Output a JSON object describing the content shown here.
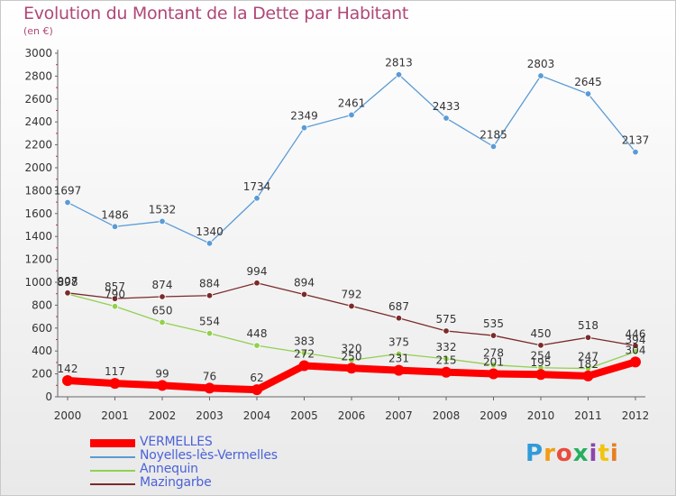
{
  "title": "Evolution du Montant de la Dette par Habitant",
  "subtitle": "(en €)",
  "logo": "Proxiti",
  "chart_data": {
    "type": "line",
    "x": [
      "2000",
      "2001",
      "2002",
      "2003",
      "2004",
      "2005",
      "2006",
      "2007",
      "2008",
      "2009",
      "2010",
      "2011",
      "2012"
    ],
    "ylim": [
      0,
      3000
    ],
    "yticks": [
      0,
      200,
      400,
      600,
      800,
      1000,
      1200,
      1400,
      1600,
      1800,
      2000,
      2200,
      2400,
      2600,
      2800,
      3000
    ],
    "grid": false,
    "legend_position": "bottom-left",
    "series": [
      {
        "name": "VERMELLES",
        "color": "#ff0000",
        "values": [
          142,
          117,
          99,
          76,
          62,
          272,
          250,
          231,
          215,
          201,
          195,
          182,
          304
        ],
        "labels": [
          "142",
          "117",
          "99",
          "76",
          "62",
          "272",
          "250",
          "231",
          "215",
          "201",
          "195",
          "182",
          "304"
        ]
      },
      {
        "name": "Noyelles-lès-Vermelles",
        "color": "#5b9bd5",
        "values": [
          1697,
          1486,
          1532,
          1340,
          1734,
          2349,
          2461,
          2813,
          2433,
          2185,
          2803,
          2645,
          2137
        ],
        "labels": [
          "1697",
          "1486",
          "1532",
          "1340",
          "1734",
          "2349",
          "2461",
          "2813",
          "2433",
          "2185",
          "2803",
          "2645",
          "2137"
        ]
      },
      {
        "name": "Annequin",
        "color": "#92d050",
        "values": [
          898,
          790,
          650,
          554,
          448,
          383,
          320,
          375,
          332,
          278,
          254,
          247,
          394
        ],
        "labels": [
          "898",
          "790",
          "650",
          "554",
          "448",
          "383",
          "320",
          "375",
          "332",
          "278",
          "254",
          "247",
          "394"
        ]
      },
      {
        "name": "Mazingarbe",
        "color": "#7b2a2a",
        "values": [
          907,
          857,
          874,
          884,
          994,
          894,
          792,
          687,
          575,
          535,
          450,
          518,
          446
        ],
        "labels": [
          "907",
          "857",
          "874",
          "884",
          "994",
          "894",
          "792",
          "687",
          "575",
          "535",
          "450",
          "518",
          "446"
        ]
      }
    ]
  }
}
